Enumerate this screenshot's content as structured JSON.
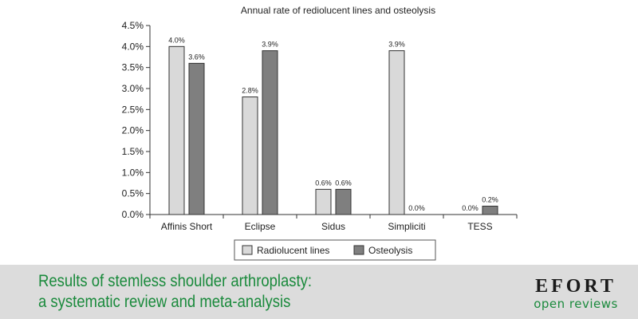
{
  "chart_data": {
    "type": "bar",
    "title": "Annual rate of rediolucent lines and osteolysis",
    "xlabel": "",
    "ylabel": "",
    "categories": [
      "Affinis Short",
      "Eclipse",
      "Sidus",
      "Simpliciti",
      "TESS"
    ],
    "series": [
      {
        "name": "Radiolucent lines",
        "values": [
          4.0,
          2.8,
          0.6,
          3.9,
          0.0
        ],
        "labels": [
          "4.0%",
          "2.8%",
          "0.6%",
          "3.9%",
          "0.0%"
        ],
        "color": "#d9d9d9"
      },
      {
        "name": "Osteolysis",
        "values": [
          3.6,
          3.9,
          0.6,
          0.0,
          0.2
        ],
        "labels": [
          "3.6%",
          "3.9%",
          "0.6%",
          "0.0%",
          "0.2%"
        ],
        "color": "#7f7f7f"
      }
    ],
    "ylim": [
      0,
      4.5
    ],
    "yticks": [
      0,
      0.5,
      1.0,
      1.5,
      2.0,
      2.5,
      3.0,
      3.5,
      4.0,
      4.5
    ],
    "ytick_labels": [
      "0.0%",
      "0.5%",
      "1.0%",
      "1.5%",
      "2.0%",
      "2.5%",
      "3.0%",
      "3.5%",
      "4.0%",
      "4.5%"
    ],
    "grid": false,
    "legend": "bottom-center"
  },
  "footer": {
    "title_line1": "Results of stemless shoulder arthroplasty:",
    "title_line2": "a systematic review and meta-analysis",
    "brand_name": "EFORT",
    "brand_sub": "open reviews",
    "accent_color": "#1a8a3c"
  }
}
